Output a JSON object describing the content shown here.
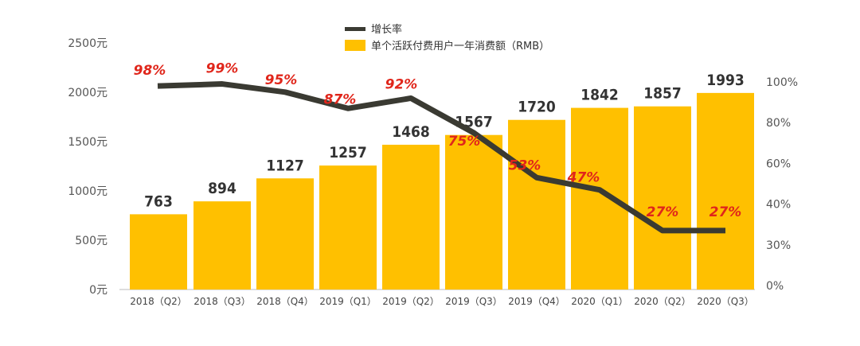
{
  "chart_data": {
    "type": "bar+line",
    "categories": [
      "2018（Q2）",
      "2018（Q3）",
      "2018（Q4）",
      "2019（Q1）",
      "2019（Q2）",
      "2019（Q3）",
      "2019（Q4）",
      "2020（Q1）",
      "2020（Q2）",
      "2020（Q3）"
    ],
    "series": [
      {
        "name": "单个活跃付费用户一年消费额（RMB）",
        "type": "bar",
        "axis": "left",
        "color": "#FFC000",
        "values": [
          763,
          894,
          1127,
          1257,
          1468,
          1567,
          1720,
          1842,
          1857,
          1993
        ],
        "labels": [
          "763",
          "894",
          "1127",
          "1257",
          "1468",
          "1567",
          "1720",
          "1842",
          "1857",
          "1993"
        ]
      },
      {
        "name": "增长率",
        "type": "line",
        "axis": "right",
        "color": "#3a3a32",
        "values": [
          98,
          99,
          95,
          87,
          92,
          75,
          53,
          47,
          27,
          27
        ],
        "labels": [
          "98%",
          "99%",
          "95%",
          "87%",
          "92%",
          "75%",
          "53%",
          "47%",
          "27%",
          "27%"
        ]
      }
    ],
    "left_axis": {
      "ticks": [
        "0元",
        "500元",
        "1000元",
        "1500元",
        "2000元",
        "2500元"
      ],
      "ylim": [
        0,
        2500
      ]
    },
    "right_axis": {
      "ticks": [
        "0%",
        "30%",
        "40%",
        "60%",
        "80%",
        "100%"
      ],
      "ylim": [
        0,
        100
      ]
    },
    "legend": {
      "placement": "top",
      "items": [
        "增长率",
        "单个活跃付费用户一年消费额（RMB）"
      ]
    },
    "label_color": "#e0261b",
    "grid": false
  }
}
